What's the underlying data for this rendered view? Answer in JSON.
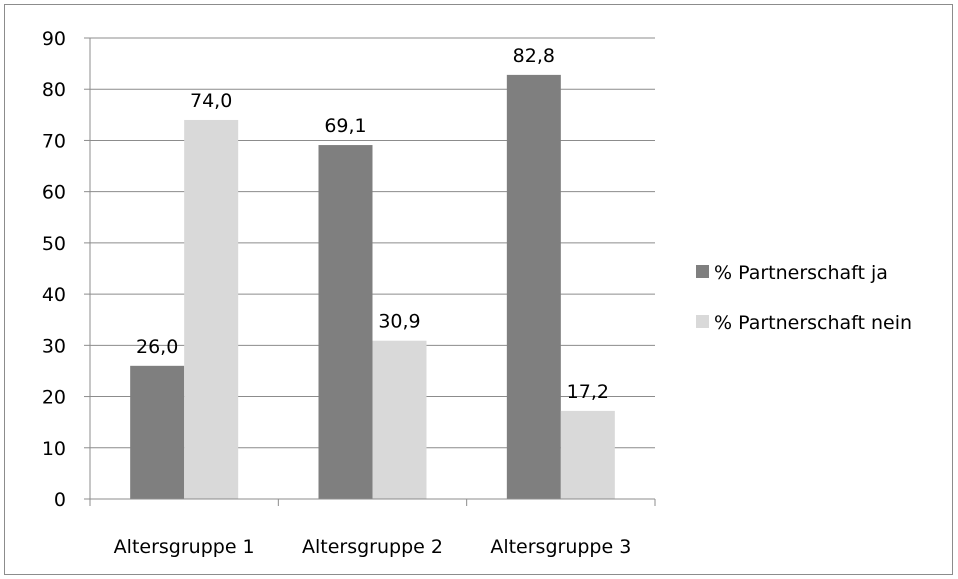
{
  "chart_data": {
    "type": "bar",
    "categories": [
      "Altersgruppe 1",
      "Altersgruppe 2",
      "Altersgruppe 3"
    ],
    "series": [
      {
        "name": "% Partnerschaft ja",
        "values": [
          26.0,
          69.1,
          82.8
        ],
        "labels": [
          "26,0",
          "69,1",
          "82,8"
        ],
        "color": "#7f7f7f"
      },
      {
        "name": "% Partnerschaft nein",
        "values": [
          74.0,
          30.9,
          17.2
        ],
        "labels": [
          "74,0",
          "30,9",
          "17,2"
        ],
        "color": "#d9d9d9"
      }
    ],
    "ylim": [
      0,
      90
    ],
    "yticks": [
      0,
      10,
      20,
      30,
      40,
      50,
      60,
      70,
      80,
      90
    ],
    "grid": true,
    "legend": "right",
    "title": "",
    "xlabel": "",
    "ylabel": ""
  }
}
